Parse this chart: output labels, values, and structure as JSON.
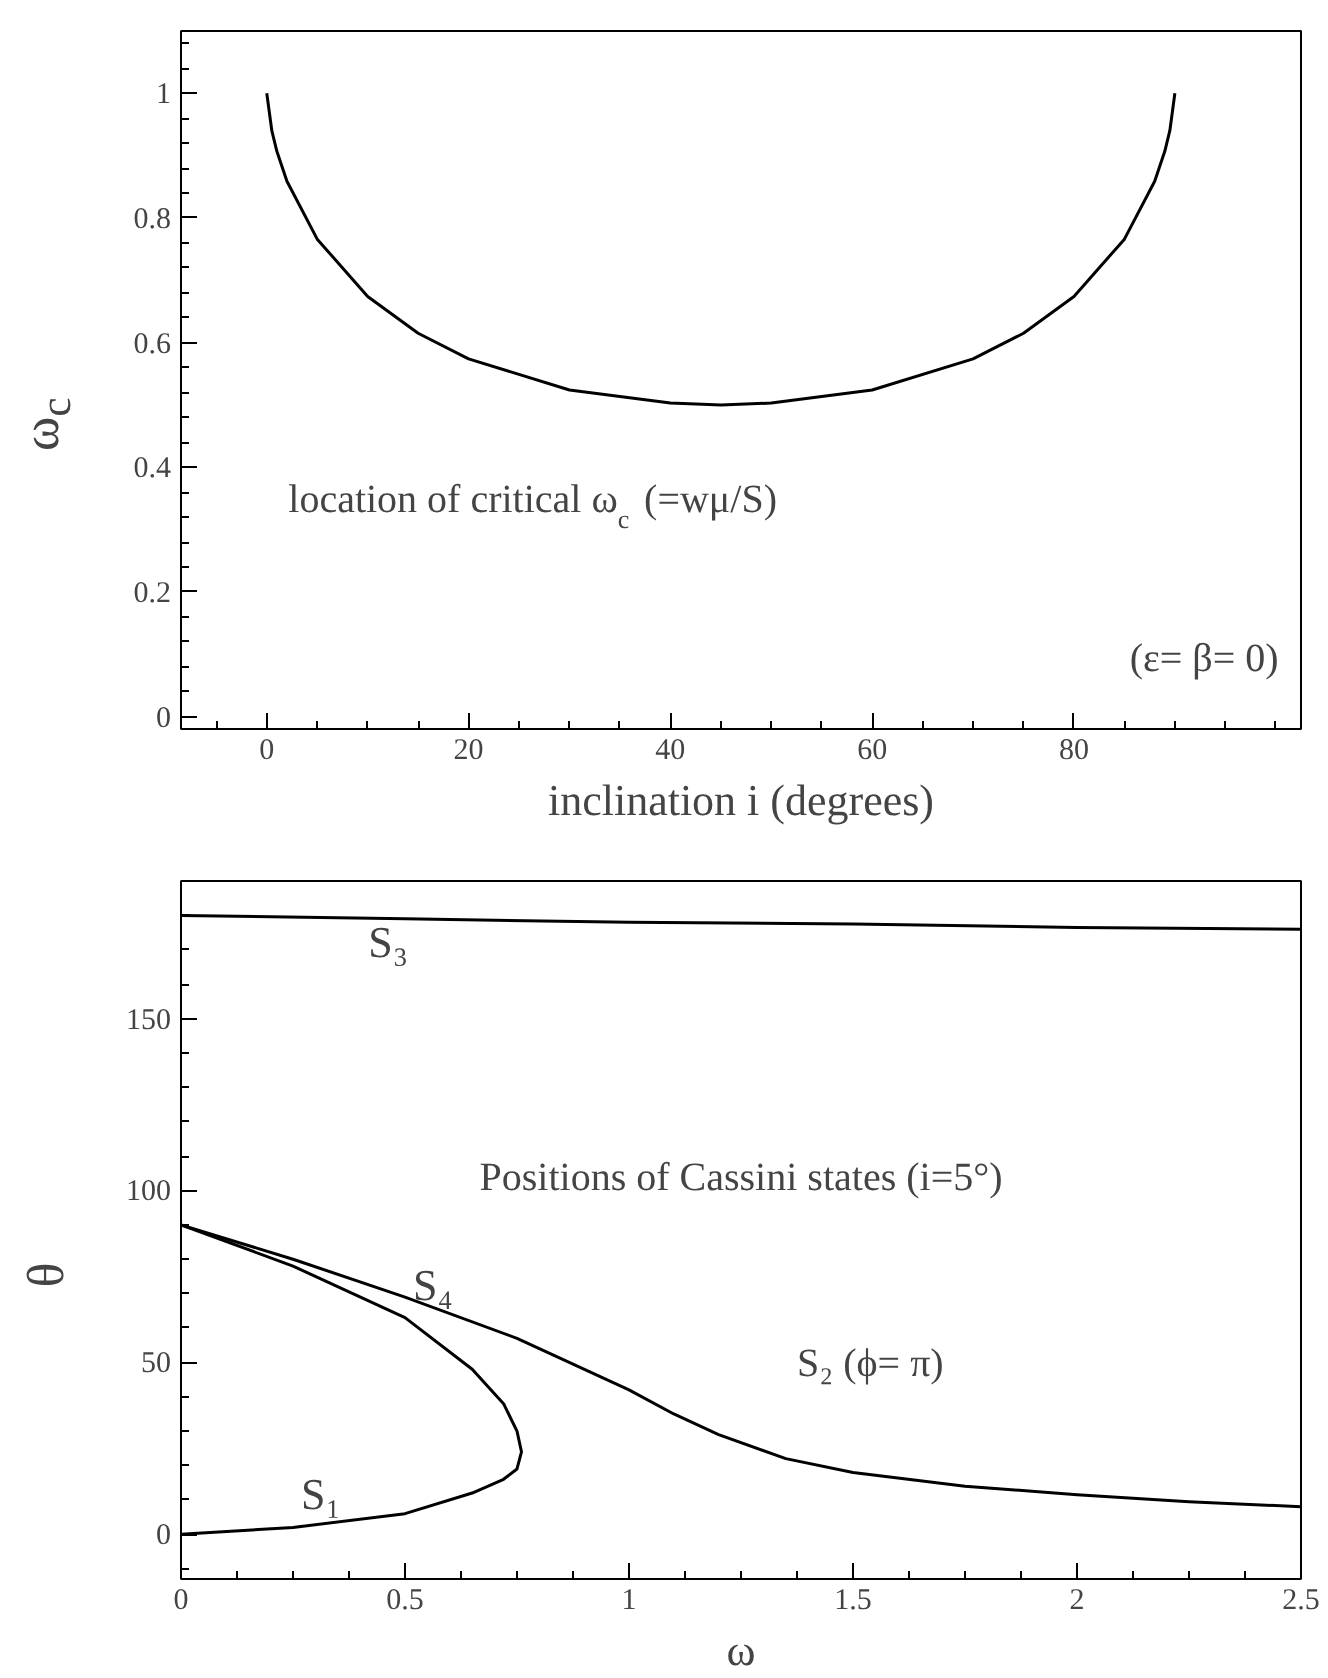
{
  "chart_data": [
    {
      "type": "line",
      "xlabel": "inclination i (degrees)",
      "ylabel": "ω$_{c}$",
      "xlim": [
        -8.5,
        102.5
      ],
      "ylim": [
        -0.02,
        1.1
      ],
      "xticks": [
        0,
        20,
        40,
        60,
        80
      ],
      "yticks": [
        0,
        0.2,
        0.4,
        0.6,
        0.8,
        1
      ],
      "grid": false,
      "annotations": [
        "location of critical ω$_{c}$ (=wμ/S)",
        "(ε= β= 0)"
      ],
      "series": [
        {
          "color": "#000000",
          "x": [
            0,
            0.5,
            1,
            2,
            5,
            10,
            15,
            20,
            30,
            40,
            45,
            50,
            60,
            70,
            75,
            80,
            85,
            88,
            89,
            89.5,
            90
          ],
          "values": [
            1,
            0.94,
            0.907,
            0.859,
            0.766,
            0.674,
            0.615,
            0.574,
            0.524,
            0.503,
            0.5,
            0.503,
            0.524,
            0.574,
            0.615,
            0.674,
            0.766,
            0.859,
            0.907,
            0.94,
            1
          ]
        }
      ]
    },
    {
      "type": "line",
      "xlabel": "ω",
      "ylabel": "θ",
      "xlim": [
        0,
        2.5
      ],
      "ylim": [
        -13,
        190
      ],
      "xticks": [
        0,
        0.5,
        1,
        1.5,
        2,
        {
          "value": 2.5,
          "label": "2.5"
        }
      ],
      "yticks": [
        0,
        50,
        100,
        150
      ],
      "grid": false,
      "annotations": [
        "Positions of Cassini states (i=5°)",
        "S₂ (ϕ= π)",
        {
          "text": "S₃",
          "x": 0.4,
          "y": 180
        },
        {
          "text": "S₄",
          "x": 0.5,
          "y": 63
        },
        {
          "text": "S₁",
          "x": 0.25,
          "y": 2
        }
      ],
      "series": [
        {
          "color": "#000000",
          "x": [
            0,
            0.5,
            1,
            1.5,
            2,
            2.5
          ],
          "values": [
            180,
            179,
            178,
            177.5,
            176.5,
            176
          ]
        },
        {
          "color": "#000000",
          "x": [
            0,
            0.25,
            0.5,
            0.75,
            1,
            1.1,
            1.2,
            1.35,
            1.5,
            1.75,
            2,
            2.25,
            2.5
          ],
          "values": [
            90,
            80,
            69,
            57,
            42,
            35,
            29,
            22,
            18,
            14,
            11.5,
            9.5,
            8
          ]
        },
        {
          "color": "#000000",
          "x": [
            0,
            0.25,
            0.5,
            0.65,
            0.72,
            0.75,
            0.76,
            0.75,
            0.72,
            0.65,
            0.5,
            0.25,
            0
          ],
          "values": [
            90,
            78,
            63,
            48,
            38,
            30,
            24,
            19,
            16,
            12,
            6,
            2,
            0
          ]
        }
      ]
    }
  ]
}
